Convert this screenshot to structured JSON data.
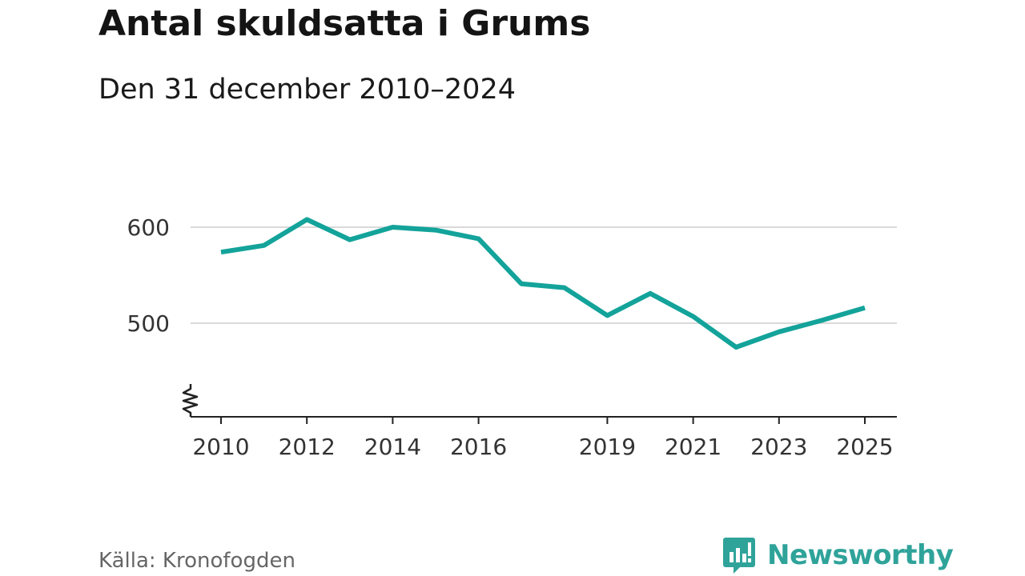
{
  "title": "Antal skuldsatta i Grums",
  "subtitle": "Den 31 december 2010–2024",
  "source": "Källa: Kronofogden",
  "brand": {
    "name": "Newsworthy",
    "color": "#2fa39a",
    "icon": "newsworthy-logo-icon"
  },
  "colors": {
    "line": "#13a39a",
    "grid": "#d9d9d9",
    "axis": "#222222"
  },
  "chart_data": {
    "type": "line",
    "title": "Antal skuldsatta i Grums",
    "subtitle": "Den 31 december 2010–2024",
    "x": [
      2010,
      2011,
      2012,
      2013,
      2014,
      2015,
      2016,
      2017,
      2018,
      2019,
      2020,
      2021,
      2022,
      2023,
      2024,
      2025
    ],
    "series": [
      {
        "values": [
          574,
          581,
          608,
          587,
          600,
          597,
          588,
          541,
          537,
          508,
          531,
          507,
          475,
          491,
          503,
          516
        ]
      }
    ],
    "xticks": [
      "2010",
      "2012",
      "2014",
      "2016",
      "2019",
      "2021",
      "2023",
      "2025"
    ],
    "yticks": [
      "500",
      "600"
    ],
    "xlim": [
      2010,
      2025
    ],
    "ylim": [
      400,
      620
    ],
    "y_axis_break": true,
    "grid": true,
    "legend": "none"
  }
}
